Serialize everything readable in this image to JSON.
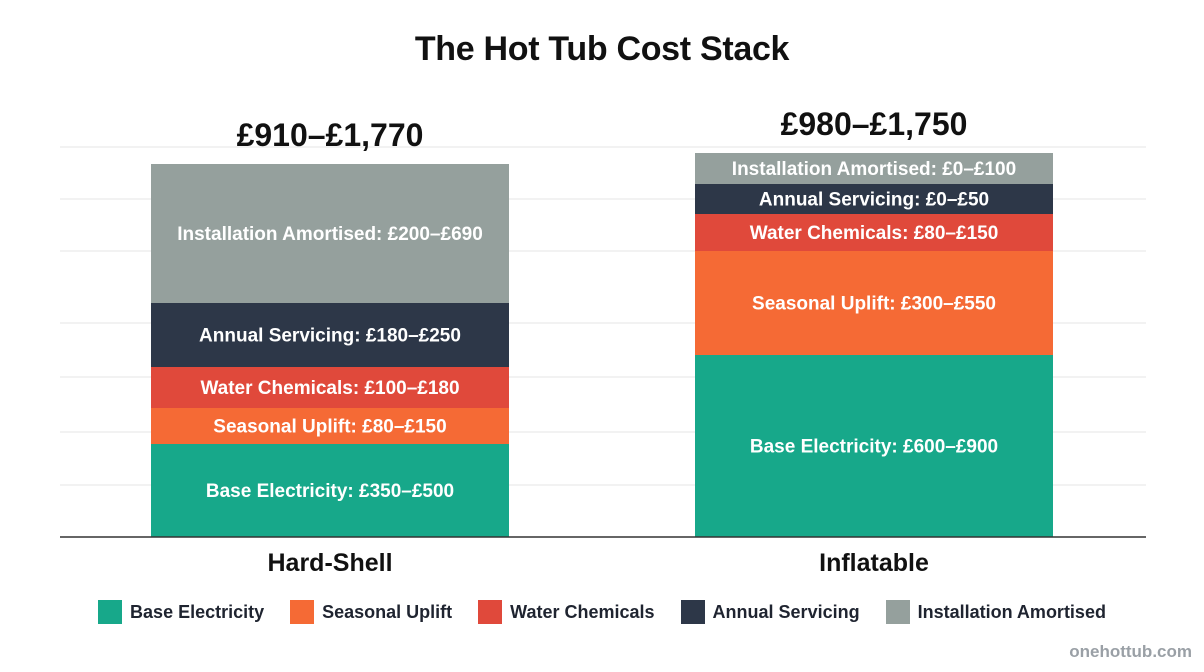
{
  "chart_data": {
    "type": "bar",
    "stacked": true,
    "title": "The Hot Tub Cost Stack",
    "categories": [
      "Hard-Shell",
      "Inflatable"
    ],
    "totals": [
      "£910–£1,770",
      "£980–£1,750"
    ],
    "grid": true,
    "legend_position": "bottom",
    "series": [
      {
        "name": "Base Electricity",
        "color": "#17a88a",
        "labels": [
          "Base Electricity: £350–£500",
          "Base Electricity: £600–£900"
        ],
        "ranges": [
          [
            350,
            500
          ],
          [
            600,
            900
          ]
        ]
      },
      {
        "name": "Seasonal Uplift",
        "color": "#f56a35",
        "labels": [
          "Seasonal Uplift: £80–£150",
          "Seasonal Uplift: £300–£550"
        ],
        "ranges": [
          [
            80,
            150
          ],
          [
            300,
            550
          ]
        ]
      },
      {
        "name": "Water Chemicals",
        "color": "#e0493b",
        "labels": [
          "Water Chemicals: £100–£180",
          "Water Chemicals: £80–£150"
        ],
        "ranges": [
          [
            100,
            180
          ],
          [
            80,
            150
          ]
        ]
      },
      {
        "name": "Annual Servicing",
        "color": "#2d3748",
        "labels": [
          "Annual Servicing: £180–£250",
          "Annual Servicing: £0–£50"
        ],
        "ranges": [
          [
            180,
            250
          ],
          [
            0,
            50
          ]
        ]
      },
      {
        "name": "Installation Amortised",
        "color": "#95a09d",
        "labels": [
          "Installation Amortised: £200–£690",
          "Installation Amortised: £0–£100"
        ],
        "ranges": [
          [
            200,
            690
          ],
          [
            0,
            100
          ]
        ]
      }
    ]
  },
  "watermark": "onehottub.com"
}
